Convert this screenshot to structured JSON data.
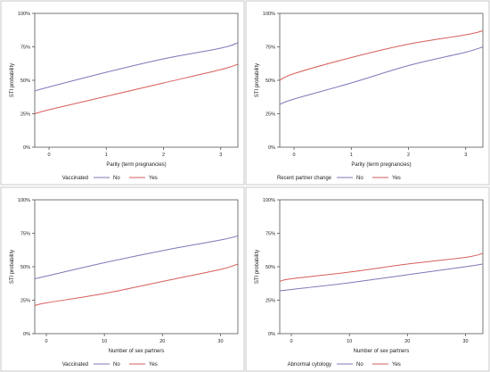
{
  "colors": {
    "no_line": "#7b79b9",
    "yes_line": "#d65f5a",
    "panel_border": "#c8c8c8",
    "plot_border": "#555555",
    "background": "#ffffff"
  },
  "chart_data": [
    {
      "type": "line",
      "xlabel": "Parity (term pregnancies)",
      "ylabel": "STI probability",
      "xlim": [
        -0.25,
        3.3
      ],
      "ylim": [
        0,
        1
      ],
      "xticks": [
        0,
        1,
        2,
        3
      ],
      "xtick_labels": [
        "0",
        "1",
        "2",
        "3"
      ],
      "yticks": [
        0,
        0.25,
        0.5,
        0.75,
        1
      ],
      "ytick_labels": [
        "0%",
        "25%",
        "50%",
        "75%",
        "100%"
      ],
      "grid": false,
      "legend_title": "Vaccinated",
      "legend_position": "bottom",
      "series": [
        {
          "name": "No",
          "x": [
            -0.25,
            0,
            1,
            2,
            3,
            3.3
          ],
          "values": [
            0.42,
            0.45,
            0.56,
            0.66,
            0.74,
            0.78
          ]
        },
        {
          "name": "Yes",
          "x": [
            -0.25,
            0,
            1,
            2,
            3,
            3.3
          ],
          "values": [
            0.25,
            0.28,
            0.38,
            0.48,
            0.58,
            0.62
          ]
        }
      ]
    },
    {
      "type": "line",
      "xlabel": "Parity (term pregnancies)",
      "ylabel": "STI probability",
      "xlim": [
        -0.25,
        3.3
      ],
      "ylim": [
        0,
        1
      ],
      "xticks": [
        0,
        1,
        2,
        3
      ],
      "xtick_labels": [
        "0",
        "1",
        "2",
        "3"
      ],
      "yticks": [
        0,
        0.25,
        0.5,
        0.75,
        1
      ],
      "ytick_labels": [
        "0%",
        "25%",
        "50%",
        "75%",
        "100%"
      ],
      "grid": false,
      "legend_title": "Recent partner change",
      "legend_position": "bottom",
      "series": [
        {
          "name": "No",
          "x": [
            -0.25,
            0,
            1,
            2,
            3,
            3.3
          ],
          "values": [
            0.32,
            0.36,
            0.48,
            0.61,
            0.71,
            0.75
          ]
        },
        {
          "name": "Yes",
          "x": [
            -0.25,
            0,
            1,
            2,
            3,
            3.3
          ],
          "values": [
            0.5,
            0.55,
            0.67,
            0.77,
            0.84,
            0.87
          ]
        }
      ]
    },
    {
      "type": "line",
      "xlabel": "Number of sex partners",
      "ylabel": "STI probability",
      "xlim": [
        -2,
        33
      ],
      "ylim": [
        0,
        1
      ],
      "xticks": [
        0,
        10,
        20,
        30
      ],
      "xtick_labels": [
        "0",
        "10",
        "20",
        "30"
      ],
      "yticks": [
        0,
        0.25,
        0.5,
        0.75,
        1
      ],
      "ytick_labels": [
        "0%",
        "25%",
        "50%",
        "75%",
        "100%"
      ],
      "grid": false,
      "legend_title": "Vaccinated",
      "legend_position": "bottom",
      "series": [
        {
          "name": "No",
          "x": [
            -2,
            0,
            10,
            20,
            30,
            33
          ],
          "values": [
            0.41,
            0.43,
            0.53,
            0.62,
            0.7,
            0.73
          ]
        },
        {
          "name": "Yes",
          "x": [
            -2,
            0,
            10,
            20,
            30,
            33
          ],
          "values": [
            0.21,
            0.23,
            0.3,
            0.39,
            0.48,
            0.52
          ]
        }
      ]
    },
    {
      "type": "line",
      "xlabel": "Number of sex partners",
      "ylabel": "STI probability",
      "xlim": [
        -2,
        33
      ],
      "ylim": [
        0,
        1
      ],
      "xticks": [
        0,
        10,
        20,
        30
      ],
      "xtick_labels": [
        "0",
        "10",
        "20",
        "30"
      ],
      "yticks": [
        0,
        0.25,
        0.5,
        0.75,
        1
      ],
      "ytick_labels": [
        "0%",
        "25%",
        "50%",
        "75%",
        "100%"
      ],
      "grid": false,
      "legend_title": "Abnormal cytology",
      "legend_position": "bottom",
      "series": [
        {
          "name": "No",
          "x": [
            -2,
            0,
            10,
            20,
            30,
            33
          ],
          "values": [
            0.32,
            0.33,
            0.38,
            0.44,
            0.5,
            0.52
          ]
        },
        {
          "name": "Yes",
          "x": [
            -2,
            0,
            10,
            20,
            30,
            33
          ],
          "values": [
            0.39,
            0.41,
            0.46,
            0.52,
            0.57,
            0.6
          ]
        }
      ]
    }
  ]
}
